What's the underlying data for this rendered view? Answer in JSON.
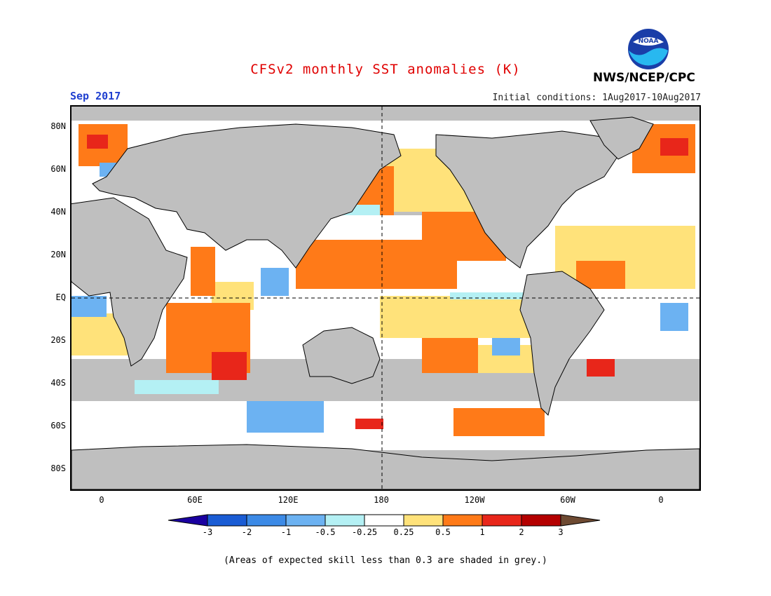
{
  "header": {
    "title": "CFSv2 monthly SST anomalies (K)",
    "month": "Sep 2017",
    "initial_conditions": "Initial conditions: 1Aug2017-10Aug2017",
    "agency": "NWS/NCEP/CPC",
    "logo_text": "NOAA",
    "colors": {
      "title": "#e00000",
      "month": "#2040d0"
    }
  },
  "axes": {
    "lat_labels": [
      "80N",
      "60N",
      "40N",
      "20N",
      "EQ",
      "20S",
      "40S",
      "60S",
      "80S"
    ],
    "lon_labels": [
      "0",
      "60E",
      "120E",
      "180",
      "120W",
      "60W",
      "0"
    ]
  },
  "colorbar": {
    "labels": [
      "-3",
      "-2",
      "-1",
      "-0.5",
      "-0.25",
      "0.25",
      "0.5",
      "1",
      "2",
      "3"
    ],
    "colors": [
      "#1a00a0",
      "#1a5cd4",
      "#3c8ae6",
      "#6cb2f2",
      "#b4f0f4",
      "#ffffff",
      "#ffe27a",
      "#ff7a18",
      "#e8261a",
      "#b40000",
      "#6e4a32"
    ]
  },
  "footnote": "(Areas of expected skill less than 0.3 are shaded in grey.)",
  "map_colors": {
    "grey": "#bfbfbf",
    "white": "#ffffff",
    "light_blue": "#b4f0f4",
    "mid_blue": "#6cb2f2",
    "blue": "#3c8ae6",
    "yellow": "#ffe27a",
    "orange": "#ff7a18",
    "red": "#e8261a",
    "dark_red": "#b40000"
  }
}
